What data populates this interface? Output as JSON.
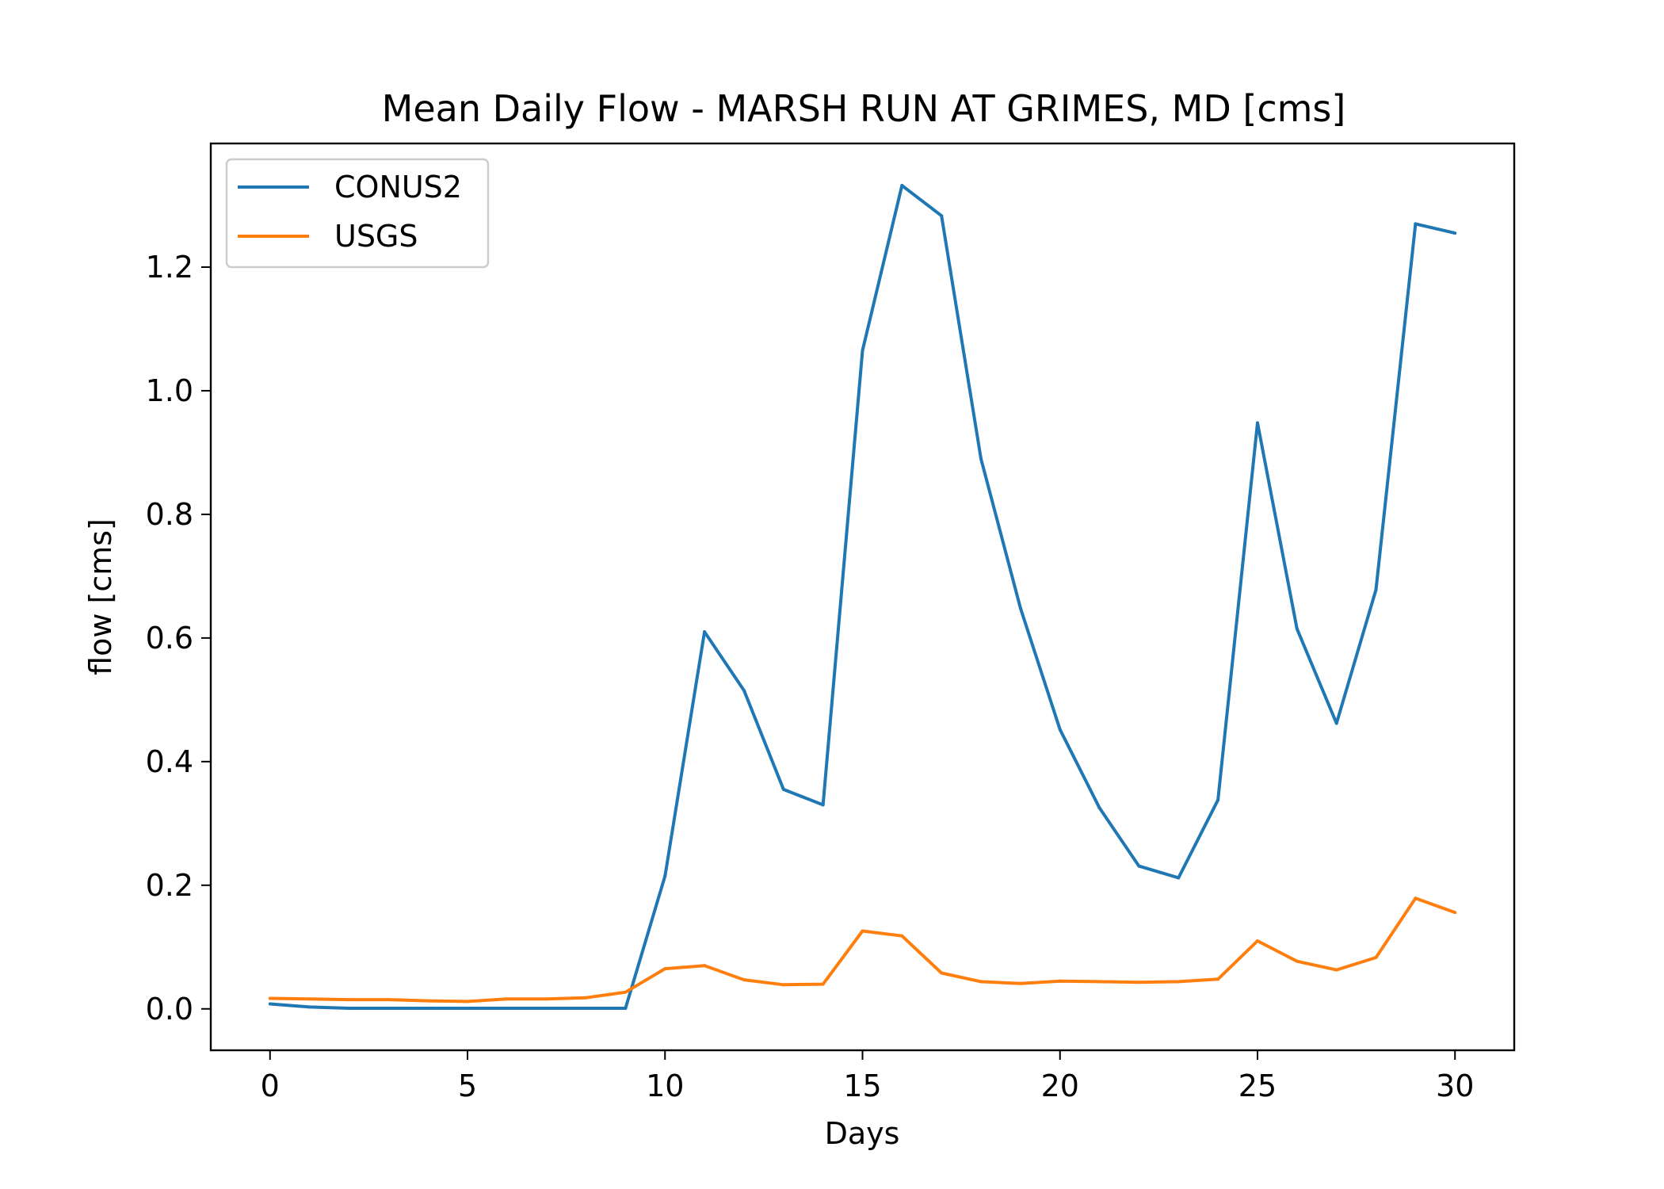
{
  "chart_data": {
    "type": "line",
    "title": "Mean Daily Flow - MARSH RUN AT GRIMES, MD [cms]",
    "xlabel": "Days",
    "ylabel": "flow [cms]",
    "xlim": [
      -1.5,
      31.5
    ],
    "ylim": [
      -0.067,
      1.4
    ],
    "xticks": [
      0,
      5,
      10,
      15,
      20,
      25,
      30
    ],
    "xtick_labels": [
      "0",
      "5",
      "10",
      "15",
      "20",
      "25",
      "30"
    ],
    "yticks": [
      0.0,
      0.2,
      0.4,
      0.6,
      0.8,
      1.0,
      1.2
    ],
    "ytick_labels": [
      "0.0",
      "0.2",
      "0.4",
      "0.6",
      "0.8",
      "1.0",
      "1.2"
    ],
    "grid": false,
    "legend_position": "upper-left",
    "x": [
      0,
      1,
      2,
      3,
      4,
      5,
      6,
      7,
      8,
      9,
      10,
      11,
      12,
      13,
      14,
      15,
      16,
      17,
      18,
      19,
      20,
      21,
      22,
      23,
      24,
      25,
      26,
      27,
      28,
      29,
      30
    ],
    "series": [
      {
        "name": "CONUS2",
        "color": "#1f77b4",
        "values": [
          0.008,
          0.003,
          0.001,
          0.001,
          0.001,
          0.001,
          0.001,
          0.001,
          0.001,
          0.001,
          0.215,
          0.61,
          0.515,
          0.355,
          0.33,
          1.065,
          1.332,
          1.283,
          0.89,
          0.648,
          0.452,
          0.325,
          0.231,
          0.212,
          0.338,
          0.948,
          0.615,
          0.462,
          0.678,
          1.27,
          1.255
        ]
      },
      {
        "name": "USGS",
        "color": "#ff7f0e",
        "values": [
          0.017,
          0.016,
          0.015,
          0.015,
          0.013,
          0.012,
          0.016,
          0.016,
          0.018,
          0.027,
          0.065,
          0.07,
          0.047,
          0.039,
          0.04,
          0.126,
          0.118,
          0.058,
          0.044,
          0.041,
          0.045,
          0.044,
          0.043,
          0.044,
          0.048,
          0.11,
          0.077,
          0.063,
          0.083,
          0.179,
          0.156
        ]
      }
    ]
  }
}
